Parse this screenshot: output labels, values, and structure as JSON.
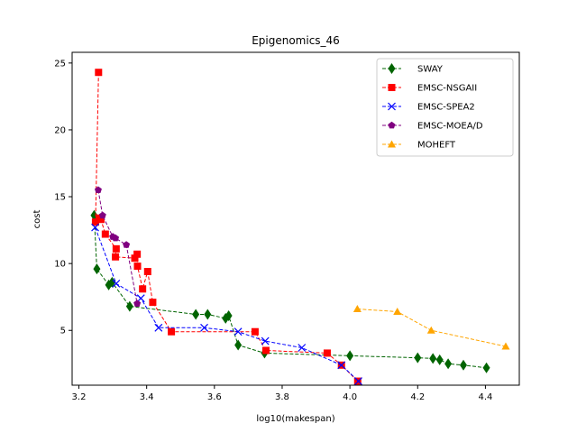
{
  "chart_data": {
    "type": "line",
    "title": "Epigenomics_46",
    "xlabel": "log10(makespan)",
    "ylabel": "cost",
    "xlim": [
      3.18,
      4.5
    ],
    "ylim": [
      0.9,
      25.8
    ],
    "xticks": [
      3.2,
      3.4,
      3.6,
      3.8,
      4.0,
      4.2,
      4.4
    ],
    "xtick_labels": [
      "3.2",
      "3.4",
      "3.6",
      "3.8",
      "4.0",
      "4.2",
      "4.4"
    ],
    "yticks": [
      5,
      10,
      15,
      20,
      25
    ],
    "ytick_labels": [
      "5",
      "10",
      "15",
      "20",
      "25"
    ],
    "grid": false,
    "legend_position": "top-right",
    "series": [
      {
        "name": "SWAY",
        "color": "#006400",
        "marker": "diamond",
        "x": [
          3.245,
          3.253,
          3.288,
          3.298,
          3.35,
          3.545,
          3.58,
          3.633,
          3.642,
          3.67,
          3.748,
          4.0,
          4.2,
          4.245,
          4.265,
          4.29,
          4.335,
          4.403
        ],
        "y": [
          13.6,
          9.6,
          8.4,
          8.6,
          6.8,
          6.2,
          6.2,
          5.9,
          6.1,
          3.9,
          3.3,
          3.1,
          2.95,
          2.9,
          2.8,
          2.5,
          2.4,
          2.2
        ]
      },
      {
        "name": "EMSC-NSGAII",
        "color": "#ff0000",
        "marker": "square",
        "x": [
          3.258,
          3.249,
          3.26,
          3.265,
          3.278,
          3.31,
          3.308,
          3.365,
          3.372,
          3.373,
          3.388,
          3.403,
          3.418,
          3.473,
          3.72,
          3.752,
          3.933,
          3.975,
          4.023
        ],
        "y": [
          24.3,
          13.1,
          13.4,
          13.3,
          12.2,
          11.1,
          10.5,
          10.4,
          10.7,
          9.8,
          8.1,
          9.4,
          7.1,
          4.9,
          4.9,
          3.5,
          3.3,
          2.4,
          1.2
        ]
      },
      {
        "name": "EMSC-SPEA2",
        "color": "#0000ff",
        "marker": "x",
        "x": [
          3.248,
          3.31,
          3.383,
          3.435,
          3.57,
          3.67,
          3.75,
          3.858,
          3.975,
          4.025
        ],
        "y": [
          12.7,
          8.5,
          7.4,
          5.2,
          5.2,
          4.9,
          4.2,
          3.7,
          2.4,
          1.2
        ]
      },
      {
        "name": "EMSC-MOEA/D",
        "color": "#800080",
        "marker": "pentagon",
        "x": [
          3.257,
          3.27,
          3.3,
          3.308,
          3.34,
          3.372
        ],
        "y": [
          15.5,
          13.6,
          12.0,
          11.9,
          11.4,
          7.0
        ]
      },
      {
        "name": "MOHEFT",
        "color": "#ffa500",
        "marker": "triangle",
        "x": [
          4.022,
          4.14,
          4.24,
          4.46
        ],
        "y": [
          6.6,
          6.4,
          5.0,
          3.8
        ]
      }
    ]
  }
}
